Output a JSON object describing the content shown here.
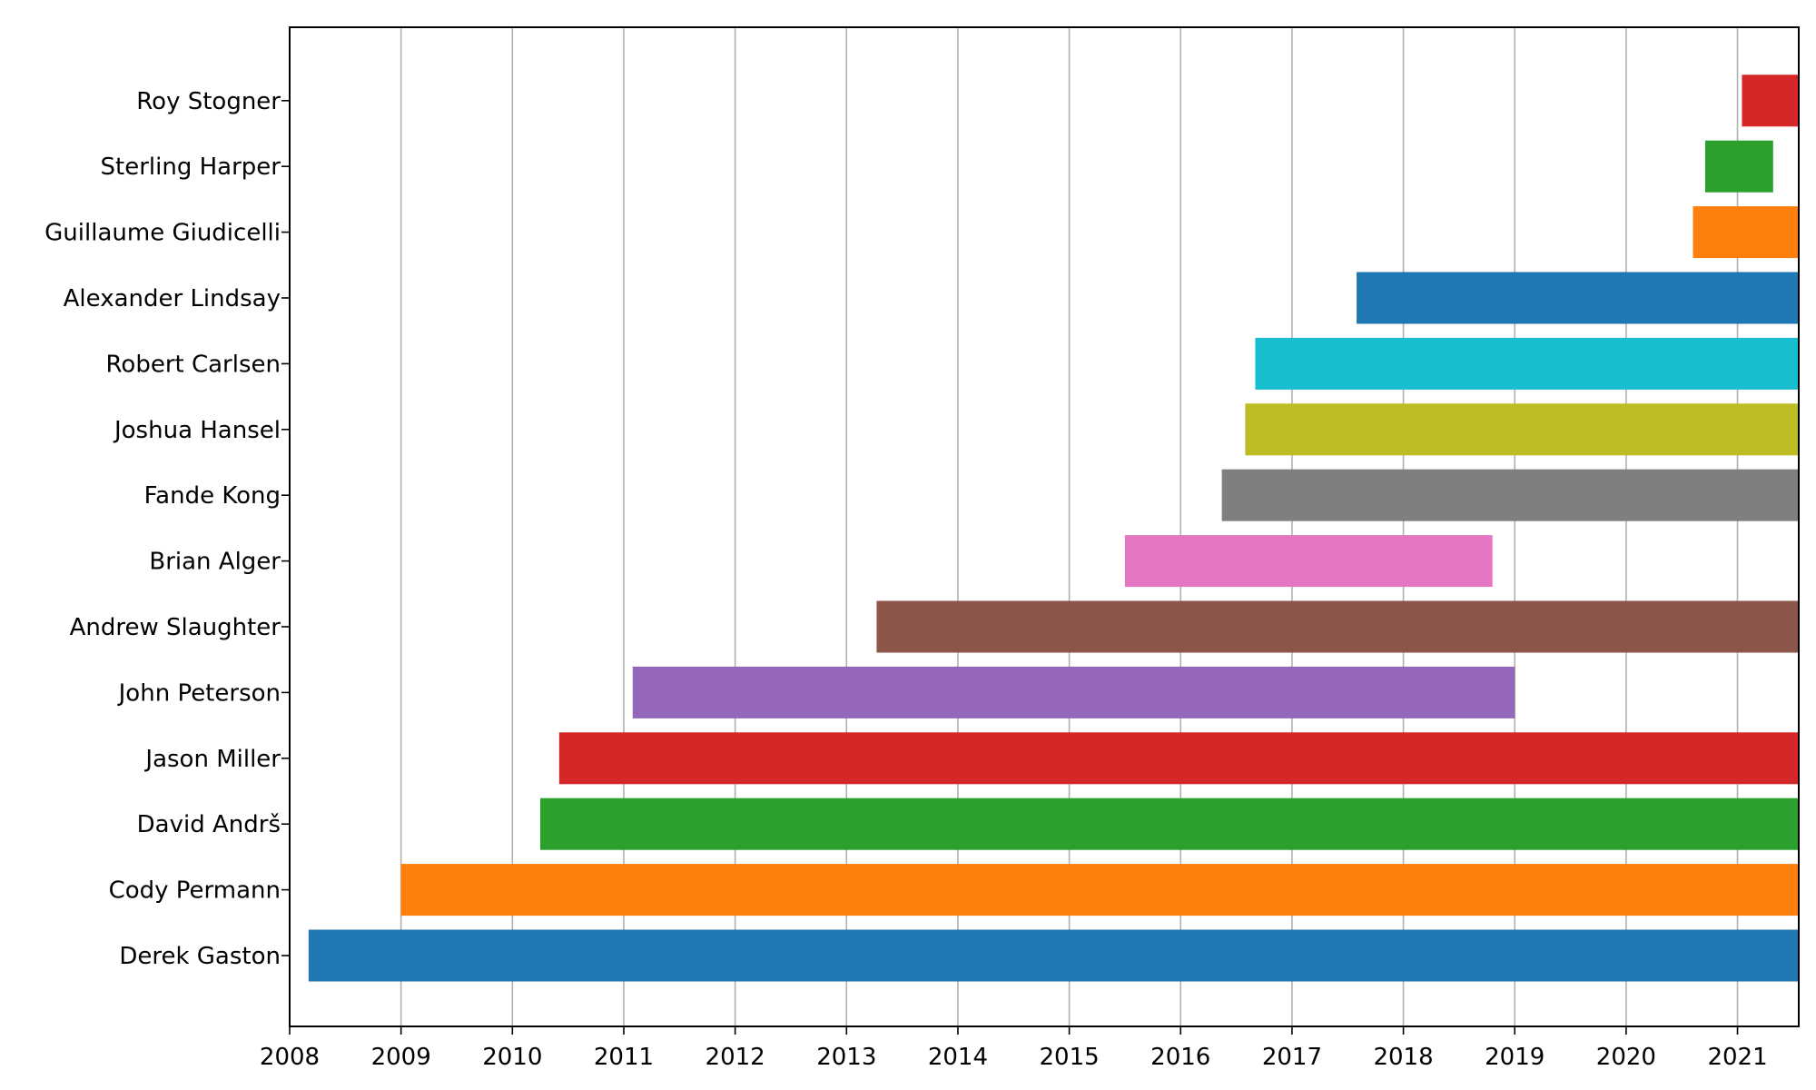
{
  "chart_data": {
    "type": "bar",
    "orientation": "horizontal",
    "title": "",
    "xlabel": "",
    "ylabel": "",
    "xlim": [
      2008.0,
      2021.55
    ],
    "x_ticks": [
      "2008",
      "2009",
      "2010",
      "2011",
      "2012",
      "2013",
      "2014",
      "2015",
      "2016",
      "2017",
      "2018",
      "2019",
      "2020",
      "2021"
    ],
    "grid": "vertical",
    "legend": "none",
    "categories": [
      "Derek Gaston",
      "Cody Permann",
      "David Andrš",
      "Jason Miller",
      "John Peterson",
      "Andrew Slaughter",
      "Brian Alger",
      "Fande Kong",
      "Joshua Hansel",
      "Robert Carlsen",
      "Alexander Lindsay",
      "Guillaume Giudicelli",
      "Sterling Harper",
      "Roy Stogner"
    ],
    "ranges": [
      [
        2008.17,
        2021.55
      ],
      [
        2009.0,
        2021.55
      ],
      [
        2010.25,
        2021.55
      ],
      [
        2010.42,
        2021.55
      ],
      [
        2011.08,
        2019.0
      ],
      [
        2013.27,
        2021.55
      ],
      [
        2015.5,
        2018.8
      ],
      [
        2016.37,
        2021.55
      ],
      [
        2016.58,
        2021.55
      ],
      [
        2016.67,
        2021.55
      ],
      [
        2017.58,
        2021.55
      ],
      [
        2020.6,
        2021.55
      ],
      [
        2020.71,
        2021.32
      ],
      [
        2021.04,
        2021.55
      ]
    ],
    "colors": [
      "#1f77b4",
      "#ff7f0e",
      "#2ca02c",
      "#d62728",
      "#9467bd",
      "#8c564b",
      "#e377c2",
      "#7f7f7f",
      "#bcbd22",
      "#17becf",
      "#1f77b4",
      "#ff7f0e",
      "#2ca02c",
      "#d62728"
    ]
  }
}
